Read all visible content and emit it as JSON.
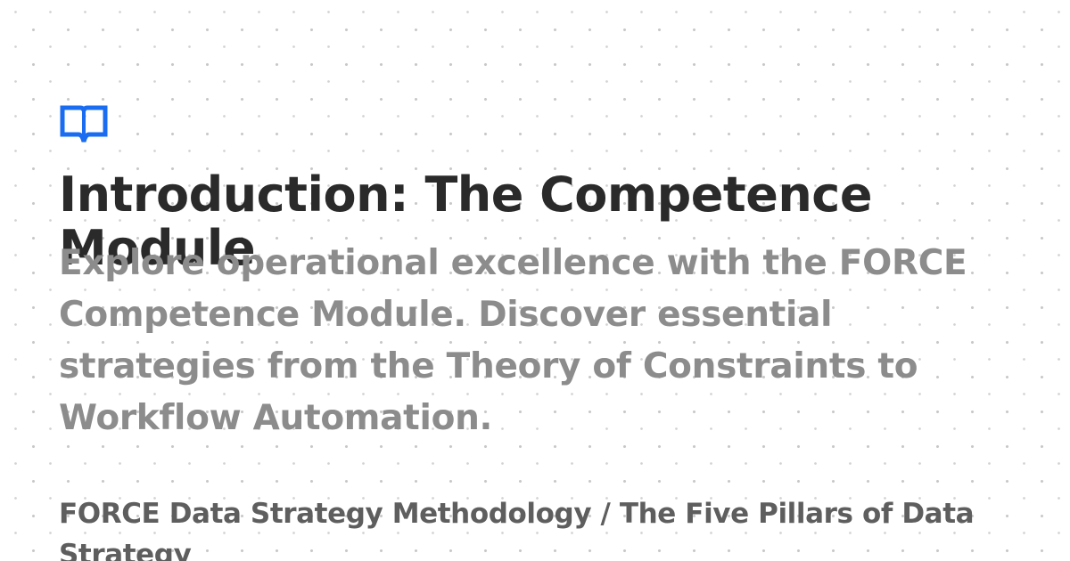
{
  "brand": {
    "icon": "open-book-icon",
    "accent_color": "#1a6cf0"
  },
  "title": "Introduction: The Competence Module",
  "description": "Explore operational excellence with the FORCE Competence Module. Discover essential strategies from the Theory of Constraints to Workflow Automation.",
  "breadcrumb": "FORCE Data Strategy Methodology / The Five Pillars of Data Strategy"
}
